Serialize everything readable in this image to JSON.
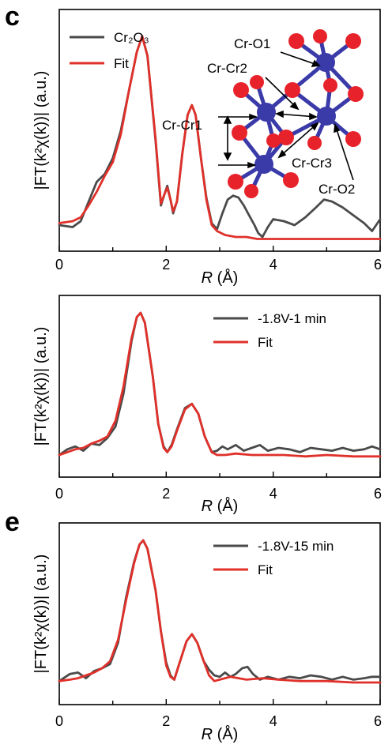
{
  "colors": {
    "experiment": "#4a4a4a",
    "fit": "#e0302a",
    "cr_atom": "#3a3aa8",
    "o_atom": "#e8222a"
  },
  "chart_data": [
    {
      "type": "line",
      "panel_letter": "c",
      "xlabel_italic": "R",
      "xlabel_unit": " (Å)",
      "ylabel": "|FT(k²χ(k))| (a.u.)",
      "xlim": [
        0,
        6
      ],
      "xticks": [
        "0",
        "2",
        "4",
        "6"
      ],
      "ylim": [
        0,
        1.1
      ],
      "legend_position": "top-left",
      "series": [
        {
          "name": "Cr₂O₃",
          "role": "experiment",
          "x": [
            0,
            0.25,
            0.4,
            0.55,
            0.7,
            0.85,
            1.0,
            1.15,
            1.3,
            1.45,
            1.55,
            1.65,
            1.8,
            1.9,
            1.97,
            2.02,
            2.08,
            2.13,
            2.2,
            2.3,
            2.4,
            2.48,
            2.55,
            2.65,
            2.75,
            2.85,
            2.95,
            3.05,
            3.15,
            3.25,
            3.35,
            3.45,
            3.55,
            3.65,
            3.72,
            3.8,
            3.9,
            4.0,
            4.2,
            4.4,
            4.6,
            4.8,
            4.95,
            5.1,
            5.3,
            5.5,
            5.7,
            5.85,
            6.0
          ],
          "y": [
            0.02,
            0.01,
            0.04,
            0.14,
            0.24,
            0.28,
            0.36,
            0.5,
            0.7,
            0.9,
            0.98,
            0.88,
            0.45,
            0.12,
            0.18,
            0.22,
            0.15,
            0.08,
            0.14,
            0.38,
            0.58,
            0.63,
            0.58,
            0.36,
            0.16,
            0.03,
            0.0,
            0.08,
            0.15,
            0.17,
            0.16,
            0.12,
            0.07,
            0.02,
            -0.02,
            -0.04,
            0.01,
            0.05,
            0.04,
            0.02,
            0.06,
            0.11,
            0.15,
            0.14,
            0.11,
            0.07,
            0.03,
            -0.01,
            0.05
          ]
        },
        {
          "name": "Fit",
          "role": "fit",
          "x": [
            0,
            0.25,
            0.4,
            0.55,
            0.7,
            0.85,
            1.0,
            1.15,
            1.3,
            1.45,
            1.55,
            1.65,
            1.8,
            1.9,
            1.97,
            2.02,
            2.08,
            2.13,
            2.2,
            2.3,
            2.4,
            2.48,
            2.55,
            2.65,
            2.75,
            2.85,
            2.95,
            3.1,
            3.3,
            3.5,
            3.7,
            3.9,
            4.2,
            4.5,
            4.8,
            5.1,
            5.4,
            5.7,
            6.0
          ],
          "y": [
            0.03,
            0.04,
            0.06,
            0.12,
            0.19,
            0.27,
            0.34,
            0.48,
            0.7,
            0.9,
            0.98,
            0.88,
            0.46,
            0.13,
            0.18,
            0.21,
            0.15,
            0.09,
            0.14,
            0.38,
            0.58,
            0.63,
            0.58,
            0.36,
            0.15,
            0.02,
            -0.01,
            -0.03,
            -0.04,
            -0.04,
            -0.05,
            -0.05,
            -0.05,
            -0.05,
            -0.05,
            -0.05,
            -0.05,
            -0.05,
            -0.05
          ]
        }
      ],
      "structure_labels": [
        "Cr-O1",
        "Cr-Cr2",
        "Cr-Cr1",
        "Cr-Cr3",
        "Cr-O2"
      ]
    },
    {
      "type": "line",
      "panel_letter": "",
      "xlabel_italic": "R",
      "xlabel_unit": " (Å)",
      "ylabel": "|FT(k²χ(k))| (a.u.)",
      "xlim": [
        0,
        6
      ],
      "xticks": [
        "0",
        "2",
        "4",
        "6"
      ],
      "ylim": [
        0,
        1.1
      ],
      "legend_position": "top-right",
      "series": [
        {
          "name": "-1.8V-1 min",
          "role": "experiment",
          "x": [
            0,
            0.15,
            0.3,
            0.45,
            0.6,
            0.75,
            0.9,
            1.05,
            1.2,
            1.35,
            1.45,
            1.52,
            1.6,
            1.75,
            1.85,
            1.95,
            2.02,
            2.1,
            2.2,
            2.35,
            2.48,
            2.6,
            2.72,
            2.85,
            2.95,
            3.05,
            3.15,
            3.3,
            3.45,
            3.6,
            3.75,
            3.9,
            4.1,
            4.3,
            4.5,
            4.7,
            4.9,
            5.1,
            5.3,
            5.5,
            5.7,
            5.85,
            6.0
          ],
          "y": [
            0.0,
            0.04,
            0.06,
            0.03,
            0.08,
            0.07,
            0.12,
            0.2,
            0.43,
            0.8,
            0.97,
            1.0,
            0.93,
            0.55,
            0.22,
            0.06,
            0.02,
            0.07,
            0.18,
            0.33,
            0.36,
            0.29,
            0.13,
            0.02,
            0.03,
            0.06,
            0.04,
            0.07,
            0.03,
            0.05,
            0.07,
            0.03,
            0.05,
            0.04,
            0.02,
            0.05,
            0.04,
            0.03,
            0.05,
            0.03,
            0.04,
            0.06,
            0.04
          ]
        },
        {
          "name": "Fit",
          "role": "fit",
          "x": [
            0,
            0.15,
            0.3,
            0.45,
            0.6,
            0.75,
            0.9,
            1.05,
            1.2,
            1.35,
            1.45,
            1.52,
            1.6,
            1.75,
            1.85,
            1.95,
            2.02,
            2.1,
            2.2,
            2.35,
            2.48,
            2.6,
            2.72,
            2.85,
            2.95,
            3.1,
            3.3,
            3.6,
            3.9,
            4.2,
            4.6,
            5.0,
            5.5,
            6.0
          ],
          "y": [
            0.0,
            0.02,
            0.04,
            0.05,
            0.08,
            0.1,
            0.13,
            0.24,
            0.48,
            0.82,
            0.97,
            1.0,
            0.93,
            0.55,
            0.22,
            0.05,
            0.02,
            0.06,
            0.17,
            0.32,
            0.36,
            0.29,
            0.13,
            0.02,
            0.0,
            0.0,
            0.01,
            0.0,
            0.0,
            0.0,
            -0.01,
            0.0,
            -0.01,
            -0.01
          ]
        }
      ]
    },
    {
      "type": "line",
      "panel_letter": "e",
      "xlabel_italic": "R",
      "xlabel_unit": " (Å)",
      "ylabel": "|FT(k²χ(k))| (a.u.)",
      "xlim": [
        0,
        6
      ],
      "xticks": [
        "0",
        "2",
        "4",
        "6"
      ],
      "ylim": [
        0,
        1.1
      ],
      "legend_position": "top-right",
      "series": [
        {
          "name": "-1.8V-15 min",
          "role": "experiment",
          "x": [
            0,
            0.2,
            0.35,
            0.5,
            0.65,
            0.8,
            0.95,
            1.1,
            1.25,
            1.4,
            1.5,
            1.57,
            1.65,
            1.8,
            1.9,
            2.0,
            2.08,
            2.15,
            2.25,
            2.38,
            2.48,
            2.58,
            2.7,
            2.8,
            2.9,
            3.0,
            3.1,
            3.2,
            3.3,
            3.42,
            3.52,
            3.62,
            3.75,
            3.9,
            4.1,
            4.3,
            4.5,
            4.7,
            4.9,
            5.1,
            5.3,
            5.5,
            5.7,
            5.85,
            6.0
          ],
          "y": [
            0.01,
            0.06,
            0.07,
            0.03,
            0.08,
            0.1,
            0.13,
            0.28,
            0.6,
            0.85,
            0.97,
            1.0,
            0.94,
            0.65,
            0.36,
            0.14,
            0.05,
            0.02,
            0.14,
            0.29,
            0.34,
            0.28,
            0.15,
            0.09,
            0.05,
            0.04,
            0.07,
            0.04,
            0.06,
            0.1,
            0.11,
            0.06,
            0.02,
            0.04,
            0.02,
            0.04,
            0.03,
            0.05,
            0.04,
            0.02,
            0.04,
            0.02,
            0.03,
            0.04,
            0.04
          ]
        },
        {
          "name": "Fit",
          "role": "fit",
          "x": [
            0,
            0.2,
            0.35,
            0.5,
            0.65,
            0.8,
            0.95,
            1.1,
            1.25,
            1.4,
            1.5,
            1.57,
            1.65,
            1.8,
            1.9,
            2.0,
            2.08,
            2.15,
            2.25,
            2.38,
            2.48,
            2.58,
            2.7,
            2.8,
            2.9,
            3.0,
            3.2,
            3.5,
            3.8,
            4.1,
            4.5,
            5.0,
            5.5,
            6.0
          ],
          "y": [
            0.01,
            0.02,
            0.03,
            0.05,
            0.07,
            0.1,
            0.15,
            0.3,
            0.58,
            0.84,
            0.97,
            1.0,
            0.94,
            0.65,
            0.36,
            0.12,
            0.04,
            0.02,
            0.14,
            0.29,
            0.34,
            0.28,
            0.15,
            0.05,
            0.01,
            0.02,
            0.04,
            0.02,
            0.03,
            0.02,
            0.01,
            0.01,
            0.0,
            0.0
          ]
        }
      ]
    }
  ]
}
